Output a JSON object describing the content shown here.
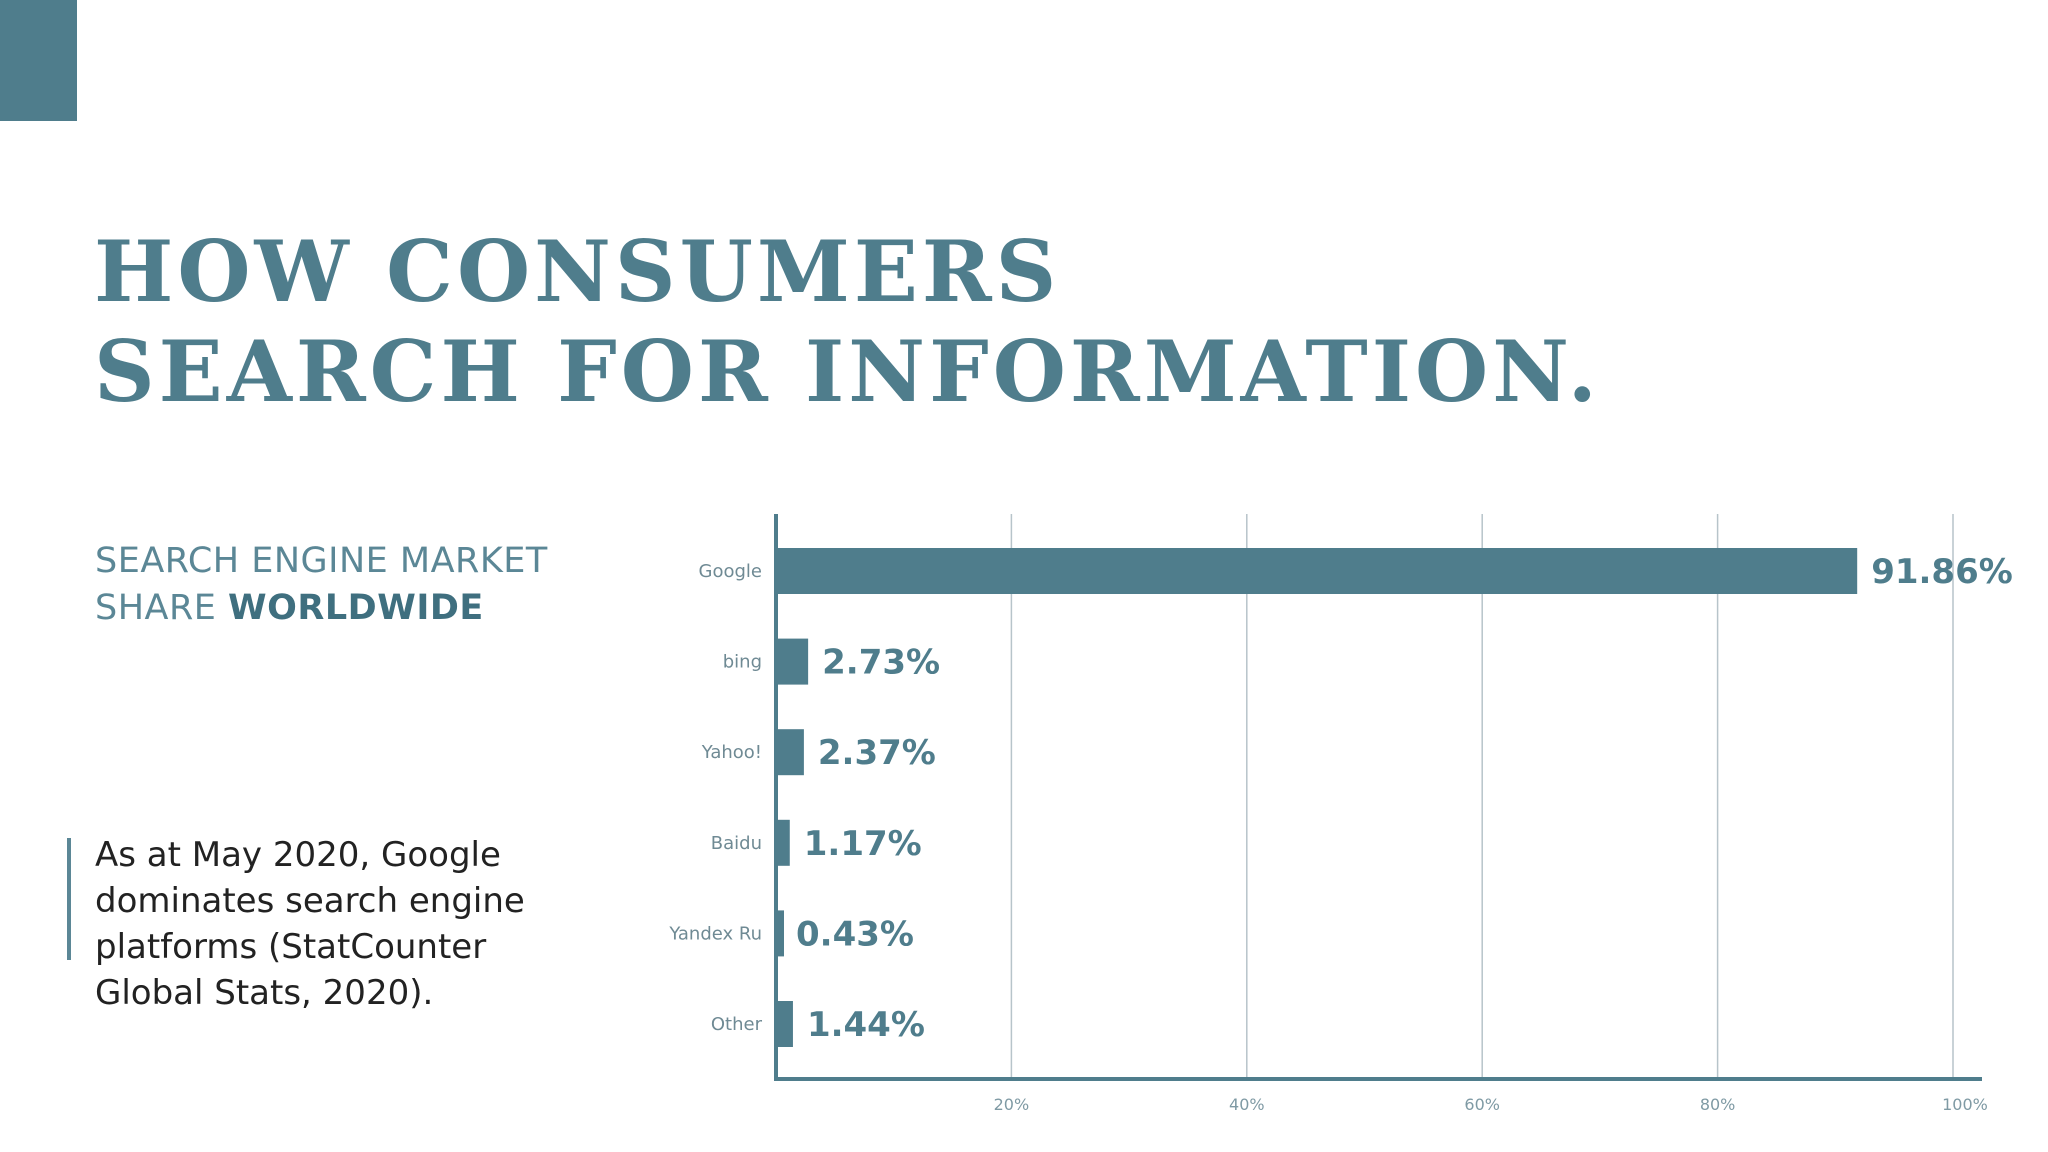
{
  "slide": {
    "title_line1": "HOW CONSUMERS",
    "title_line2": "SEARCH FOR INFORMATION.",
    "subtitle_line1": "SEARCH ENGINE MARKET",
    "subtitle_line2_normal": "SHARE ",
    "subtitle_line2_bold": "WORLDWIDE",
    "note": "As at May 2020, Google dominates search engine platforms (StatCounter Global Stats, 2020)."
  },
  "colors": {
    "accent": "#4f7d8c",
    "grid": "#b7c4ca",
    "text_dark": "#222222"
  },
  "chart_data": {
    "type": "bar",
    "orientation": "horizontal",
    "categories": [
      "Google",
      "bing",
      "Yahoo!",
      "Baidu",
      "Yandex Ru",
      "Other"
    ],
    "values": [
      91.86,
      2.73,
      2.37,
      1.17,
      0.43,
      1.44
    ],
    "value_labels": [
      "91.86%",
      "2.73%",
      "2.37%",
      "1.17%",
      "0.43%",
      "1.44%"
    ],
    "xlim": [
      0,
      100
    ],
    "xticks": [
      20,
      40,
      60,
      80,
      100
    ],
    "xtick_labels": [
      "20%",
      "40%",
      "60%",
      "80%",
      "100%"
    ],
    "grid": true,
    "legend": "none"
  }
}
